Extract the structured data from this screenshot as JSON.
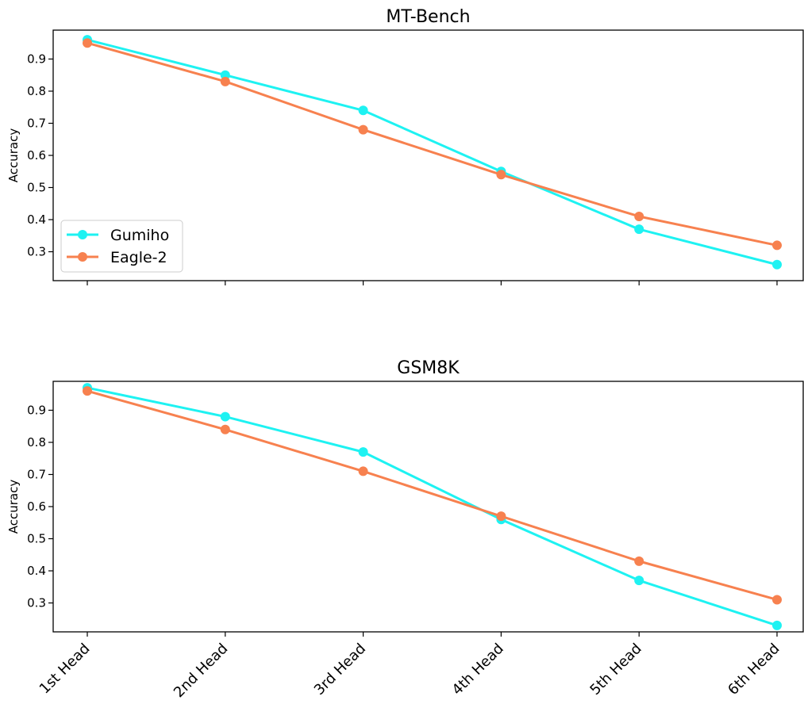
{
  "chart_data": [
    {
      "type": "line",
      "title": "MT-Bench",
      "xlabel": "",
      "ylabel": "Accuracy",
      "categories": [
        "1st Head",
        "2nd Head",
        "3rd Head",
        "4th Head",
        "5th Head",
        "6th Head"
      ],
      "yticks": [
        0.3,
        0.4,
        0.5,
        0.6,
        0.7,
        0.8,
        0.9
      ],
      "ylim": [
        0.21,
        0.99
      ],
      "show_xtick_labels": false,
      "grid": false,
      "legend": {
        "placement": "lower-left"
      },
      "series": [
        {
          "name": "Gumiho",
          "color": "#1ef2f2",
          "values": [
            0.96,
            0.85,
            0.74,
            0.55,
            0.37,
            0.26
          ]
        },
        {
          "name": "Eagle-2",
          "color": "#f7814f",
          "values": [
            0.95,
            0.83,
            0.68,
            0.54,
            0.41,
            0.32
          ]
        }
      ]
    },
    {
      "type": "line",
      "title": "GSM8K",
      "xlabel": "",
      "ylabel": "Accuracy",
      "categories": [
        "1st Head",
        "2nd Head",
        "3rd Head",
        "4th Head",
        "5th Head",
        "6th Head"
      ],
      "yticks": [
        0.3,
        0.4,
        0.5,
        0.6,
        0.7,
        0.8,
        0.9
      ],
      "ylim": [
        0.21,
        0.99
      ],
      "show_xtick_labels": true,
      "grid": false,
      "legend": null,
      "series": [
        {
          "name": "Gumiho",
          "color": "#1ef2f2",
          "values": [
            0.97,
            0.88,
            0.77,
            0.56,
            0.37,
            0.23
          ]
        },
        {
          "name": "Eagle-2",
          "color": "#f7814f",
          "values": [
            0.96,
            0.84,
            0.71,
            0.57,
            0.43,
            0.31
          ]
        }
      ]
    }
  ]
}
